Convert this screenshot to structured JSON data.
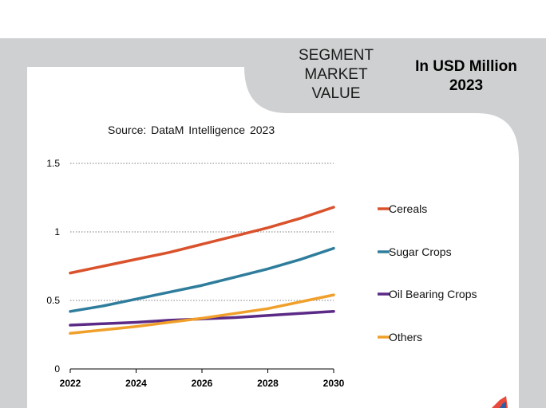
{
  "header": {
    "segment_title": [
      "SEGMENT",
      "MARKET",
      "VALUE"
    ],
    "unit": [
      "In USD Million",
      "2023"
    ]
  },
  "source": "Source: DataM Intelligence 2023",
  "colors": {
    "cereals": "#d9522c",
    "sugar_crops": "#2e7d9c",
    "oil_bearing_crops": "#5b2a86",
    "others": "#f0a02a",
    "panel_gray": "#cfd0d1"
  },
  "chart_data": {
    "type": "line",
    "x": [
      2022,
      2023,
      2024,
      2025,
      2026,
      2027,
      2028,
      2029,
      2030
    ],
    "xticks": [
      "2022",
      "2024",
      "2026",
      "2028",
      "2030"
    ],
    "yticks": [
      "0",
      "0.5",
      "1",
      "1.5"
    ],
    "ylim": [
      0,
      1.5
    ],
    "xlim": [
      2022,
      2030
    ],
    "grid": true,
    "legend_position": "right",
    "series": [
      {
        "name": "Cereals",
        "color": "#d9522c",
        "values": [
          0.7,
          0.75,
          0.8,
          0.85,
          0.91,
          0.97,
          1.03,
          1.1,
          1.18
        ]
      },
      {
        "name": "Sugar Crops",
        "color": "#2e7d9c",
        "values": [
          0.42,
          0.46,
          0.51,
          0.56,
          0.61,
          0.67,
          0.73,
          0.8,
          0.88
        ]
      },
      {
        "name": "Oil Bearing Crops",
        "color": "#5b2a86",
        "values": [
          0.32,
          0.33,
          0.34,
          0.355,
          0.365,
          0.375,
          0.39,
          0.405,
          0.42
        ]
      },
      {
        "name": "Others",
        "color": "#f0a02a",
        "values": [
          0.26,
          0.285,
          0.31,
          0.34,
          0.37,
          0.405,
          0.44,
          0.49,
          0.54
        ]
      }
    ]
  }
}
